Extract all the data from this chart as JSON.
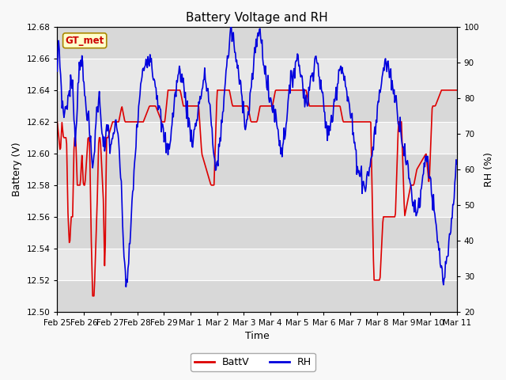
{
  "title": "Battery Voltage and RH",
  "xlabel": "Time",
  "ylabel_left": "Battery (V)",
  "ylabel_right": "RH (%)",
  "ylim_left": [
    12.5,
    12.68
  ],
  "ylim_right": [
    20,
    100
  ],
  "yticks_left": [
    12.5,
    12.52,
    12.54,
    12.56,
    12.58,
    12.6,
    12.62,
    12.64,
    12.66,
    12.68
  ],
  "yticks_right": [
    20,
    30,
    40,
    50,
    60,
    70,
    80,
    90,
    100
  ],
  "xtick_labels": [
    "Feb 25",
    "Feb 26",
    "Feb 27",
    "Feb 28",
    "Feb 29",
    "Mar 1",
    "Mar 2",
    "Mar 3",
    "Mar 4",
    "Mar 5",
    "Mar 6",
    "Mar 7",
    "Mar 8",
    "Mar 9",
    "Mar 10",
    "Mar 11"
  ],
  "batt_color": "#dd0000",
  "rh_color": "#0000dd",
  "bg_color": "#f8f8f8",
  "plot_bg_dark": "#d8d8d8",
  "plot_bg_light": "#e8e8e8",
  "legend_label_batt": "BattV",
  "legend_label_rh": "RH",
  "station_label": "GT_met",
  "station_label_bg": "#ffffcc",
  "station_label_border": "#aa8800",
  "station_label_color": "#cc0000",
  "title_fontsize": 11,
  "axis_fontsize": 9,
  "tick_fontsize": 7.5
}
